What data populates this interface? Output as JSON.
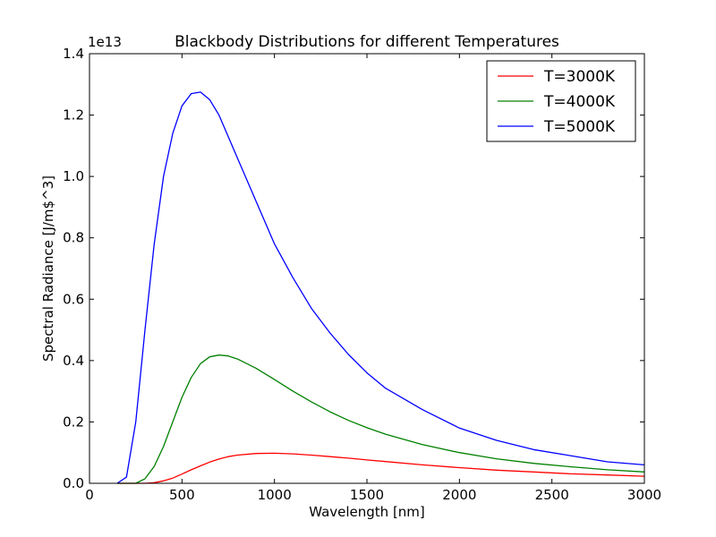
{
  "chart_data": {
    "type": "line",
    "title": "Blackbody Distributions for different Temperatures",
    "xlabel": "Wavelength [nm]",
    "ylabel": "Spectral Radiance [J/m$^3]",
    "y_offset_label": "1e13",
    "y_scale_factor": 10000000000000.0,
    "xlim": [
      0,
      3000
    ],
    "ylim": [
      0,
      1.4
    ],
    "x_ticks": [
      0,
      500,
      1000,
      1500,
      2000,
      2500,
      3000
    ],
    "x_tick_labels": [
      "0",
      "500",
      "1000",
      "1500",
      "2000",
      "2500",
      "3000"
    ],
    "y_ticks": [
      0,
      0.2,
      0.4,
      0.6,
      0.8,
      1.0,
      1.2,
      1.4
    ],
    "y_tick_labels": [
      "0.0",
      "0.2",
      "0.4",
      "0.6",
      "0.8",
      "1.0",
      "1.2",
      "1.4"
    ],
    "grid": false,
    "legend_position": "top-right",
    "x": [
      150,
      200,
      250,
      300,
      350,
      400,
      450,
      500,
      550,
      600,
      650,
      700,
      750,
      800,
      900,
      1000,
      1100,
      1200,
      1300,
      1400,
      1500,
      1600,
      1800,
      2000,
      2200,
      2400,
      2600,
      2800,
      3000
    ],
    "series": [
      {
        "name": "T=3000K",
        "color": "#ff0000",
        "values": [
          0.0,
          0.0,
          0.0,
          0.0,
          0.002,
          0.008,
          0.017,
          0.03,
          0.044,
          0.057,
          0.069,
          0.079,
          0.087,
          0.092,
          0.097,
          0.098,
          0.096,
          0.092,
          0.087,
          0.082,
          0.076,
          0.071,
          0.06,
          0.051,
          0.043,
          0.037,
          0.031,
          0.027,
          0.023
        ]
      },
      {
        "name": "T=4000K",
        "color": "#008000",
        "values": [
          0.0,
          0.0,
          0.0,
          0.015,
          0.055,
          0.12,
          0.2,
          0.28,
          0.345,
          0.39,
          0.412,
          0.418,
          0.415,
          0.405,
          0.375,
          0.338,
          0.3,
          0.265,
          0.233,
          0.205,
          0.181,
          0.16,
          0.126,
          0.1,
          0.08,
          0.065,
          0.054,
          0.044,
          0.037
        ]
      },
      {
        "name": "T=5000K",
        "color": "#0000ff",
        "values": [
          0.0,
          0.02,
          0.2,
          0.5,
          0.78,
          1.0,
          1.14,
          1.23,
          1.27,
          1.275,
          1.25,
          1.2,
          1.13,
          1.06,
          0.92,
          0.78,
          0.67,
          0.57,
          0.49,
          0.42,
          0.36,
          0.31,
          0.24,
          0.18,
          0.14,
          0.11,
          0.09,
          0.07,
          0.06
        ]
      }
    ]
  }
}
